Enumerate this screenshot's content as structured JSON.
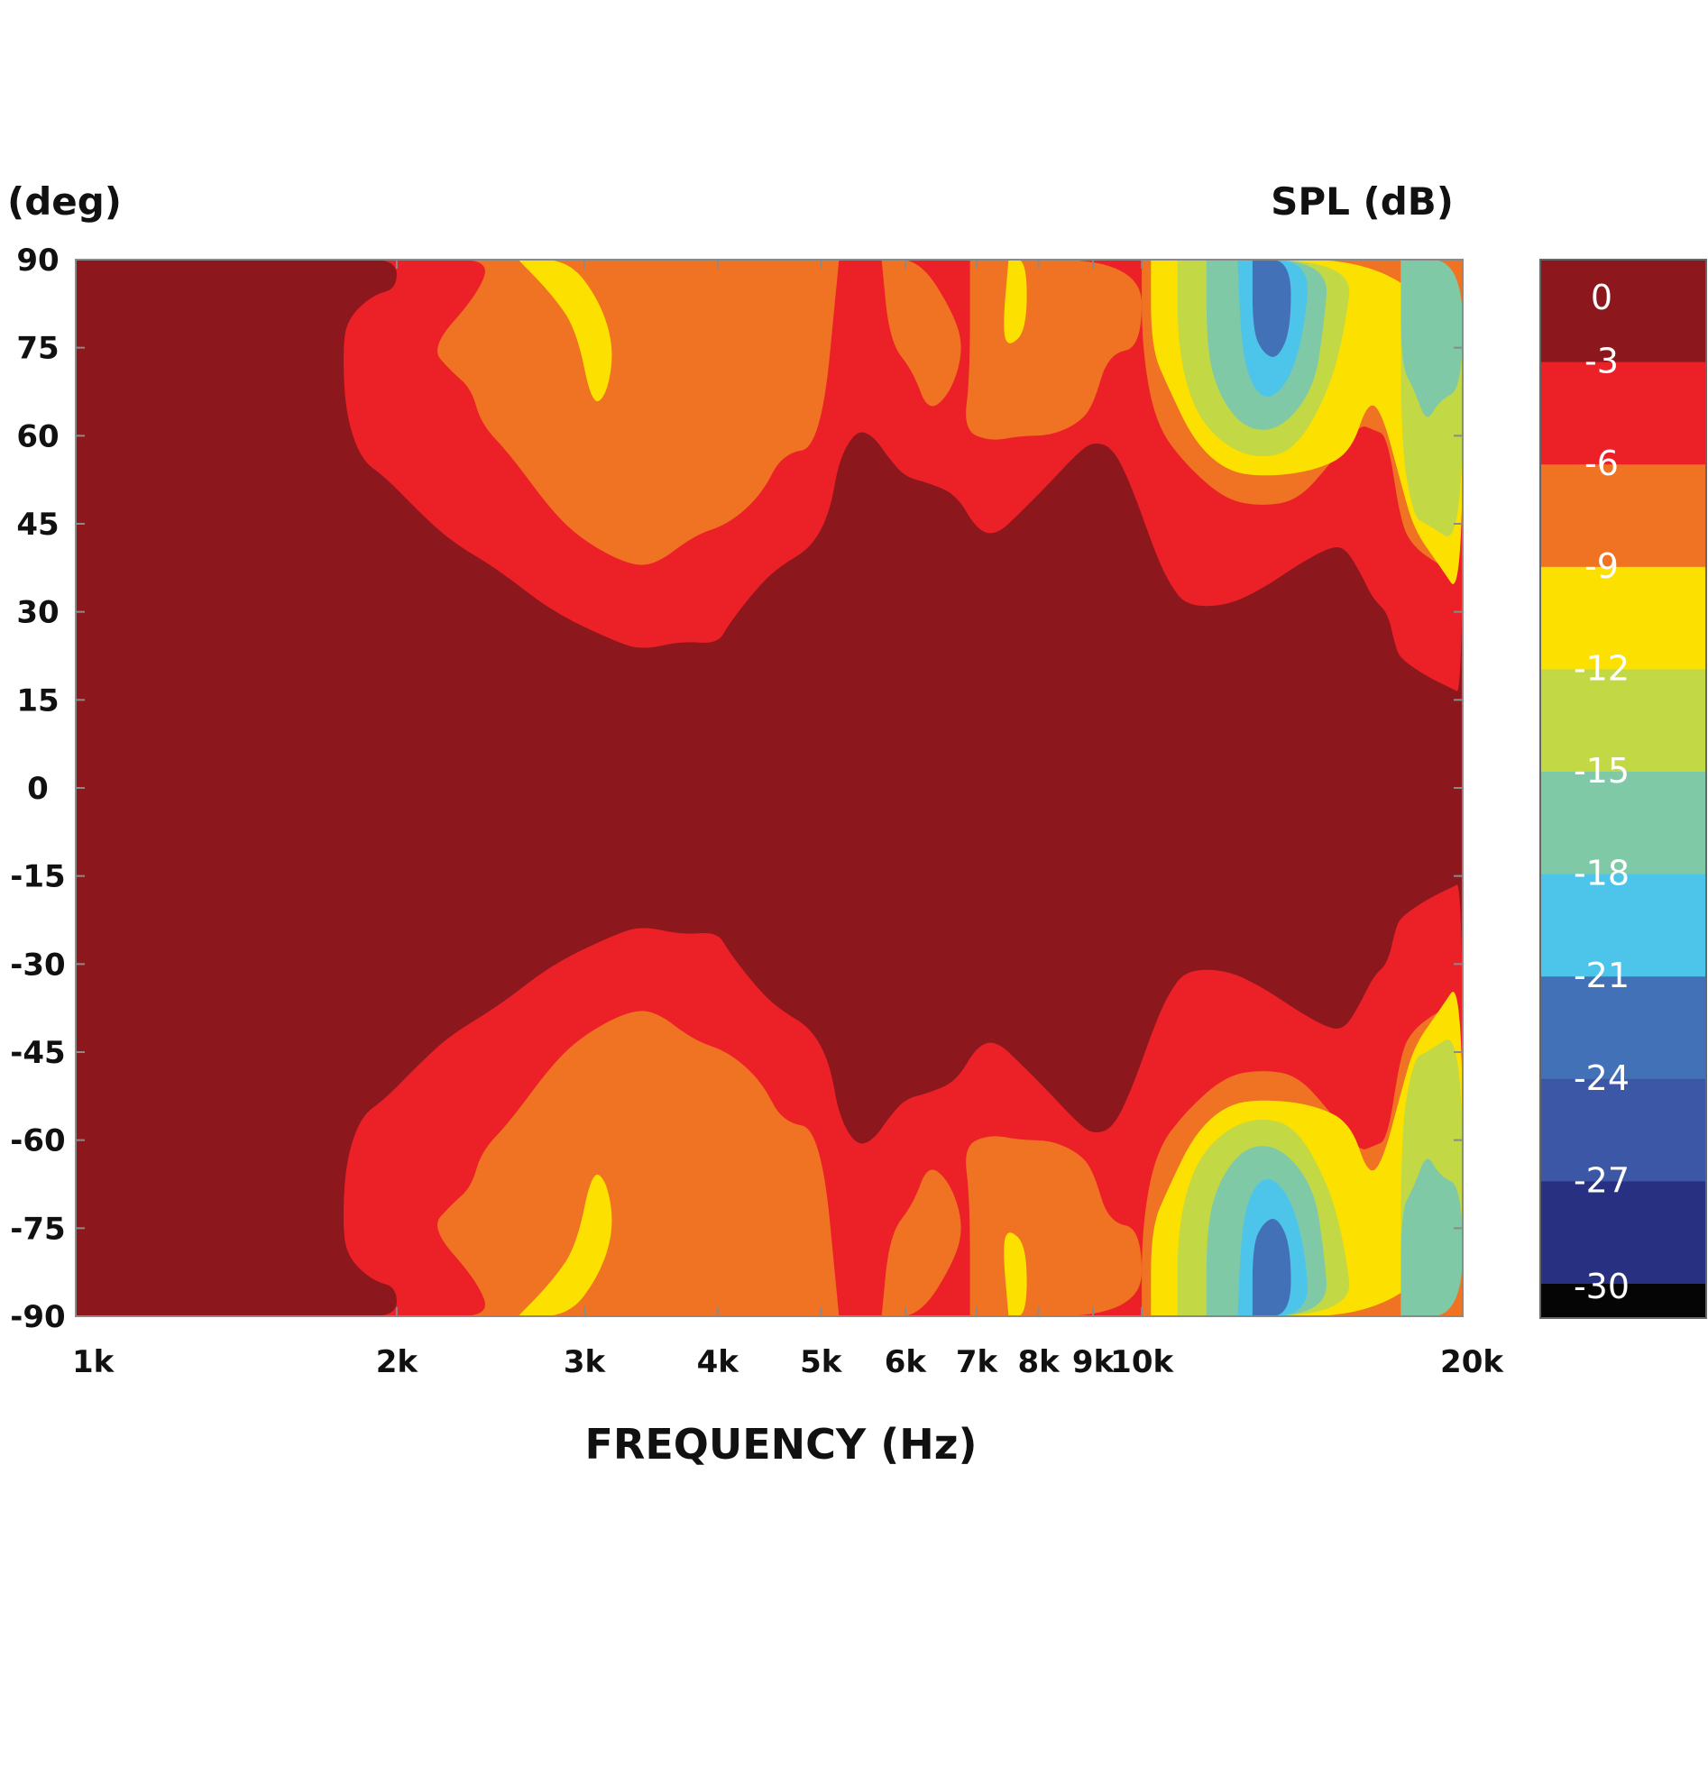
{
  "chart_data": {
    "type": "heatmap",
    "subtype": "filled-contour directivity map",
    "y_unit_label": "(deg)",
    "colorbar_title": "SPL (dB)",
    "xlabel": "FREQUENCY (Hz)",
    "x_scale": "log",
    "xlim": [
      1000,
      20000
    ],
    "ylim": [
      -90,
      90
    ],
    "x_ticks": [
      {
        "value": 1000,
        "label": "1k"
      },
      {
        "value": 2000,
        "label": "2k"
      },
      {
        "value": 3000,
        "label": "3k"
      },
      {
        "value": 4000,
        "label": "4k"
      },
      {
        "value": 5000,
        "label": "5k"
      },
      {
        "value": 6000,
        "label": "6k"
      },
      {
        "value": 7000,
        "label": "7k"
      },
      {
        "value": 8000,
        "label": "8k"
      },
      {
        "value": 9000,
        "label": "9k"
      },
      {
        "value": 10000,
        "label": "10k"
      },
      {
        "value": 20000,
        "label": "20k"
      }
    ],
    "y_ticks": [
      {
        "value": 90,
        "label": "90"
      },
      {
        "value": 75,
        "label": "75"
      },
      {
        "value": 60,
        "label": "60"
      },
      {
        "value": 45,
        "label": "45"
      },
      {
        "value": 30,
        "label": "30"
      },
      {
        "value": 15,
        "label": "15"
      },
      {
        "value": 0,
        "label": "0"
      },
      {
        "value": -15,
        "label": "-15"
      },
      {
        "value": -30,
        "label": "-30"
      },
      {
        "value": -45,
        "label": "-45"
      },
      {
        "value": -60,
        "label": "-60"
      },
      {
        "value": -75,
        "label": "-75"
      },
      {
        "value": -90,
        "label": "-90"
      }
    ],
    "colorbar": [
      {
        "label": "0",
        "color": "#8c181d"
      },
      {
        "label": "-3",
        "color": "#ec2027"
      },
      {
        "label": "-6",
        "color": "#f07223"
      },
      {
        "label": "-9",
        "color": "#fce100"
      },
      {
        "label": "-12",
        "color": "#c2d845"
      },
      {
        "label": "-15",
        "color": "#80c9a7"
      },
      {
        "label": "-18",
        "color": "#4dc5ea"
      },
      {
        "label": "-21",
        "color": "#4271b7"
      },
      {
        "label": "-24",
        "color": "#3b57a6"
      },
      {
        "label": "-27",
        "color": "#273081"
      },
      {
        "label": "-30",
        "color": "#050505"
      }
    ],
    "symmetric_about_zero_degrees": true,
    "contour_boundaries_upper_half": [
      {
        "level": -3,
        "points": [
          [
            1800,
            90
          ],
          [
            2000,
            90
          ],
          [
            2000,
            85
          ],
          [
            1900,
            84
          ],
          [
            1800,
            80
          ],
          [
            1780,
            75
          ],
          [
            1790,
            64
          ],
          [
            1850,
            56
          ],
          [
            1950,
            53
          ],
          [
            2100,
            47
          ],
          [
            2250,
            42
          ],
          [
            2500,
            37
          ],
          [
            2800,
            30
          ],
          [
            3200,
            25
          ],
          [
            3400,
            23.5
          ],
          [
            3700,
            25
          ],
          [
            4000,
            24.5
          ],
          [
            4100,
            28
          ],
          [
            4400,
            35
          ],
          [
            4600,
            38
          ],
          [
            4900,
            41
          ],
          [
            5100,
            47
          ],
          [
            5200,
            56
          ],
          [
            5400,
            61
          ],
          [
            5600,
            60
          ],
          [
            5800,
            56
          ],
          [
            6000,
            53
          ],
          [
            6300,
            52
          ],
          [
            6700,
            50
          ],
          [
            7000,
            44
          ],
          [
            7300,
            43
          ],
          [
            7700,
            47
          ],
          [
            8200,
            52
          ],
          [
            8700,
            57
          ],
          [
            9000,
            59
          ],
          [
            9400,
            58
          ],
          [
            9800,
            51
          ],
          [
            10300,
            40
          ],
          [
            10600,
            35
          ],
          [
            11000,
            31
          ],
          [
            12000,
            31
          ],
          [
            13000,
            34
          ],
          [
            14000,
            38
          ],
          [
            15000,
            41
          ],
          [
            15500,
            41
          ],
          [
            16000,
            37
          ],
          [
            16500,
            32
          ],
          [
            17000,
            30
          ],
          [
            17300,
            24
          ],
          [
            17500,
            22
          ],
          [
            18500,
            19
          ],
          [
            19500,
            17
          ],
          [
            20000,
            16
          ],
          [
            20000,
            90
          ]
        ]
      },
      {
        "level": -6,
        "points": [
          [
            2150,
            90
          ],
          [
            2450,
            90
          ],
          [
            2380,
            84
          ],
          [
            2150,
            75
          ],
          [
            2250,
            71
          ],
          [
            2350,
            68
          ],
          [
            2400,
            62
          ],
          [
            2550,
            57
          ],
          [
            2800,
            47
          ],
          [
            3000,
            42
          ],
          [
            3300,
            38
          ],
          [
            3500,
            38
          ],
          [
            3800,
            43
          ],
          [
            4100,
            45
          ],
          [
            4400,
            50
          ],
          [
            4600,
            57
          ],
          [
            5000,
            58
          ],
          [
            5200,
            90
          ]
        ]
      },
      {
        "level": -6,
        "points": [
          [
            5700,
            90
          ],
          [
            6200,
            90
          ],
          [
            6700,
            80
          ],
          [
            6800,
            74
          ],
          [
            6600,
            67
          ],
          [
            6300,
            64
          ],
          [
            6100,
            71
          ],
          [
            5800,
            76
          ],
          [
            5700,
            90
          ]
        ]
      },
      {
        "level": -6,
        "points": [
          [
            6900,
            90
          ],
          [
            10000,
            90
          ],
          [
            10000,
            75
          ],
          [
            9300,
            74
          ],
          [
            9000,
            65
          ],
          [
            8700,
            62
          ],
          [
            8200,
            60
          ],
          [
            7700,
            60
          ],
          [
            7200,
            59
          ],
          [
            6800,
            61
          ],
          [
            6900,
            70
          ],
          [
            6900,
            90
          ]
        ]
      },
      {
        "level": -6,
        "points": [
          [
            10000,
            90
          ],
          [
            10000,
            75
          ],
          [
            10300,
            62
          ],
          [
            11000,
            55
          ],
          [
            12000,
            49
          ],
          [
            13000,
            48
          ],
          [
            14000,
            49
          ],
          [
            15000,
            55
          ],
          [
            16000,
            62
          ],
          [
            16500,
            61
          ],
          [
            17000,
            60
          ],
          [
            17500,
            45
          ],
          [
            18000,
            41
          ],
          [
            19000,
            38
          ],
          [
            20000,
            36
          ],
          [
            20000,
            90
          ]
        ]
      },
      {
        "level": -9,
        "points": [
          [
            2600,
            90
          ],
          [
            2900,
            90
          ],
          [
            3100,
            83
          ],
          [
            3200,
            75
          ],
          [
            3150,
            67
          ],
          [
            3050,
            65
          ],
          [
            2950,
            78
          ],
          [
            2800,
            84
          ],
          [
            2600,
            90
          ]
        ]
      },
      {
        "level": -9,
        "points": [
          [
            7500,
            90
          ],
          [
            7800,
            90
          ],
          [
            7800,
            78
          ],
          [
            7500,
            75
          ],
          [
            7400,
            78
          ],
          [
            7500,
            90
          ]
        ]
      },
      {
        "level": -9,
        "points": [
          [
            10200,
            90
          ],
          [
            20000,
            90
          ],
          [
            20000,
            32
          ],
          [
            19000,
            38
          ],
          [
            18000,
            44
          ],
          [
            17500,
            52
          ],
          [
            16800,
            64
          ],
          [
            16300,
            66
          ],
          [
            15700,
            57
          ],
          [
            14500,
            54
          ],
          [
            13000,
            53
          ],
          [
            12000,
            54
          ],
          [
            11200,
            59
          ],
          [
            10600,
            68
          ],
          [
            10200,
            75
          ],
          [
            10200,
            90
          ]
        ]
      },
      {
        "level": -12,
        "points": [
          [
            10800,
            90
          ],
          [
            15800,
            90
          ],
          [
            15500,
            78
          ],
          [
            15000,
            68
          ],
          [
            14000,
            58
          ],
          [
            13000,
            56
          ],
          [
            12000,
            58
          ],
          [
            11200,
            64
          ],
          [
            10800,
            75
          ],
          [
            10800,
            90
          ]
        ]
      },
      {
        "level": -12,
        "points": [
          [
            17300,
            90
          ],
          [
            20000,
            90
          ],
          [
            20000,
            41
          ],
          [
            18500,
            45
          ],
          [
            18000,
            46
          ],
          [
            17500,
            58
          ],
          [
            17500,
            90
          ]
        ]
      },
      {
        "level": -15,
        "points": [
          [
            11500,
            90
          ],
          [
            15000,
            90
          ],
          [
            14800,
            78
          ],
          [
            14500,
            68
          ],
          [
            13500,
            61
          ],
          [
            12500,
            61
          ],
          [
            11800,
            67
          ],
          [
            11500,
            75
          ],
          [
            11500,
            90
          ]
        ]
      },
      {
        "level": -15,
        "points": [
          [
            17500,
            90
          ],
          [
            20000,
            90
          ],
          [
            20000,
            68
          ],
          [
            19000,
            66
          ],
          [
            18500,
            62
          ],
          [
            18000,
            68
          ],
          [
            17500,
            72
          ],
          [
            17500,
            90
          ]
        ]
      },
      {
        "level": -18,
        "points": [
          [
            12300,
            90
          ],
          [
            14400,
            90
          ],
          [
            14200,
            78
          ],
          [
            13800,
            70
          ],
          [
            13200,
            66
          ],
          [
            12700,
            68
          ],
          [
            12400,
            75
          ],
          [
            12300,
            90
          ]
        ]
      },
      {
        "level": -21,
        "points": [
          [
            12700,
            90
          ],
          [
            13800,
            90
          ],
          [
            13800,
            78
          ],
          [
            13400,
            73
          ],
          [
            13000,
            74
          ],
          [
            12700,
            78
          ],
          [
            12700,
            90
          ]
        ]
      }
    ]
  }
}
